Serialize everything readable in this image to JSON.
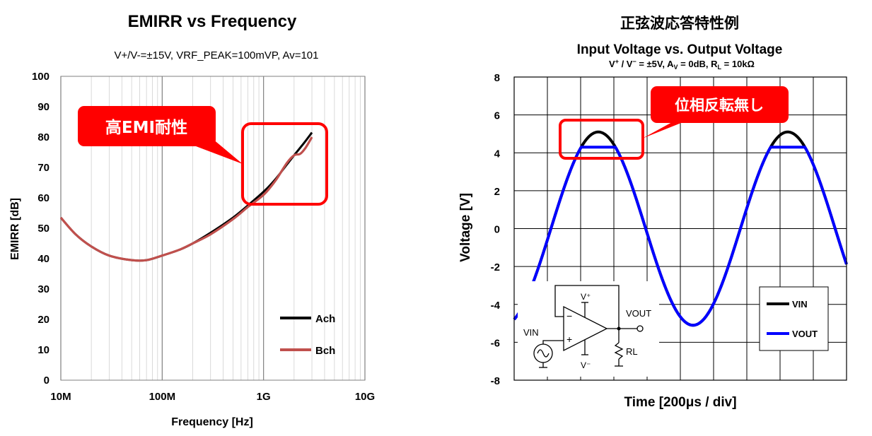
{
  "chart_data": [
    {
      "type": "line",
      "title": "EMIRR vs Frequency",
      "subtitle": "V+/V-=±15V, VRF_PEAK=100mVP, Av=101",
      "xlabel": "Frequency [Hz]",
      "ylabel": "EMIRR [dB]",
      "x_scale": "log",
      "xlim": [
        10000000,
        10000000000
      ],
      "ylim": [
        0,
        100
      ],
      "x_ticks": [
        10000000,
        100000000,
        1000000000,
        10000000000
      ],
      "x_tick_labels": [
        "10M",
        "100M",
        "1G",
        "10G"
      ],
      "y_ticks": [
        0,
        10,
        20,
        30,
        40,
        50,
        60,
        70,
        80,
        90,
        100
      ],
      "grid": true,
      "legend_position": "bottom-right",
      "annotation": "高EMI耐性",
      "series": [
        {
          "name": "Ach",
          "color": "#000000",
          "x": [
            10000000,
            14000000,
            20000000,
            30000000,
            50000000,
            70000000,
            100000000,
            150000000,
            200000000,
            300000000,
            500000000,
            700000000,
            1000000000,
            1300000000,
            1700000000,
            2000000000,
            2500000000,
            3000000000
          ],
          "y": [
            53.5,
            48,
            44,
            41,
            39.5,
            39.5,
            41,
            43,
            45,
            48.5,
            53.5,
            57.5,
            62,
            66,
            71,
            74,
            78,
            81.5
          ]
        },
        {
          "name": "Bch",
          "color": "#c0504d",
          "x": [
            10000000,
            14000000,
            20000000,
            30000000,
            50000000,
            70000000,
            100000000,
            150000000,
            200000000,
            300000000,
            500000000,
            700000000,
            1000000000,
            1300000000,
            1700000000,
            2000000000,
            2300000000,
            2600000000,
            3000000000
          ],
          "y": [
            53.5,
            48,
            44,
            41,
            39.5,
            39.5,
            41,
            43,
            45,
            48,
            53,
            57,
            61,
            65.5,
            71.5,
            74,
            74.5,
            76.5,
            80
          ]
        }
      ]
    },
    {
      "type": "line",
      "title": "正弦波応答特性例",
      "subtitle": "Input Voltage vs. Output Voltage",
      "conditions": "V⁺ / V⁻ = ±5V, AV = 0dB, RL = 10kΩ",
      "xlabel": "Time [200μs / div]",
      "ylabel": "Voltage [V]",
      "ylim": [
        -8,
        8
      ],
      "y_ticks": [
        -8,
        -6,
        -4,
        -2,
        0,
        2,
        4,
        6,
        8
      ],
      "x_divisions": 10,
      "grid": true,
      "legend_position": "bottom-right",
      "annotation": "位相反転無し",
      "series": [
        {
          "name": "VIN",
          "color": "#000000",
          "waveform": "sine",
          "amplitude": 5.1,
          "period_divisions": 5.7
        },
        {
          "name": "VOUT",
          "color": "#0000ff",
          "waveform": "sine",
          "amplitude": 5.1,
          "period_divisions": 5.7,
          "clip_high": 4.3
        }
      ]
    }
  ],
  "schematic": {
    "vplus": "V⁺",
    "vminus": "V⁻",
    "vout": "VOUT",
    "vin": "VIN",
    "rl": "RL",
    "minus_sign": "−",
    "plus_sign": "+"
  }
}
